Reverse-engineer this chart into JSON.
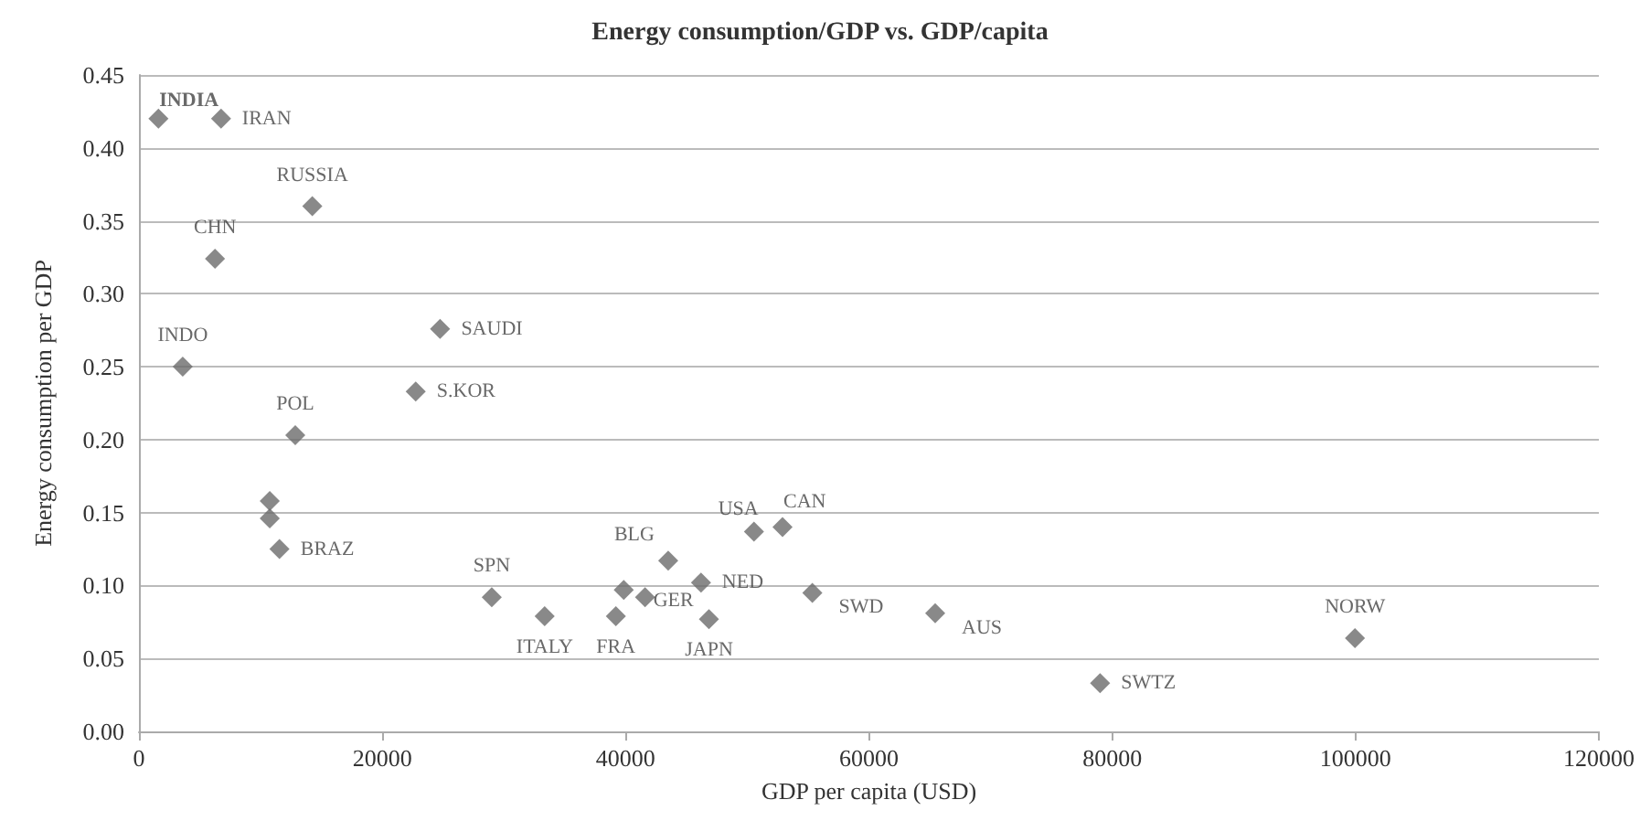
{
  "chart_data": {
    "type": "scatter",
    "title": "Energy consumption/GDP vs. GDP/capita",
    "xlabel": "GDP per capita (USD)",
    "ylabel": "Energy consumption per GDP",
    "xlim": [
      0,
      120000
    ],
    "xticks": [
      0,
      20000,
      40000,
      60000,
      80000,
      100000,
      120000
    ],
    "ylim": [
      0,
      0.45
    ],
    "yticks": [
      {
        "value": 0,
        "label": "0.00"
      },
      0.05,
      {
        "value": 0.1,
        "label": "0.10"
      },
      0.15,
      {
        "value": 0.2,
        "label": "0.20"
      },
      0.25,
      {
        "value": 0.3,
        "label": "0.30"
      },
      0.35,
      {
        "value": 0.4,
        "label": "0.40"
      },
      0.45
    ],
    "grid": "y",
    "legend": false,
    "marker": "diamond",
    "series": [
      {
        "name": "INDIA",
        "color": "#6b6b6b",
        "x": [
          1600
        ],
        "values": [
          0.42
        ]
      },
      {
        "name": "IRAN",
        "color": "#6b6b6b",
        "x": [
          6750
        ],
        "values": [
          0.42
        ]
      },
      {
        "name": "RUSSIA",
        "color": "#6b6b6b",
        "x": [
          14250
        ],
        "values": [
          0.36
        ]
      },
      {
        "name": "CHN",
        "color": "#6b6b6b",
        "x": [
          6250
        ],
        "values": [
          0.324
        ]
      },
      {
        "name": "INDO",
        "color": "#6b6b6b",
        "x": [
          3600
        ],
        "values": [
          0.25
        ]
      },
      {
        "name": "SAUDI",
        "color": "#6b6b6b",
        "x": [
          24750
        ],
        "values": [
          0.276
        ]
      },
      {
        "name": "S.KOR",
        "color": "#6b6b6b",
        "x": [
          22750
        ],
        "values": [
          0.233
        ]
      },
      {
        "name": "POL",
        "color": "#6b6b6b",
        "x": [
          12850
        ],
        "values": [
          0.203
        ]
      },
      {
        "name": "BRAZ",
        "color": "#6b6b6b",
        "x": [
          11550
        ],
        "values": [
          0.125
        ]
      },
      {
        "name": "SPN",
        "color": "#6b6b6b",
        "x": [
          29000
        ],
        "values": [
          0.092
        ]
      },
      {
        "name": "ITALY",
        "color": "#6b6b6b",
        "x": [
          33350
        ],
        "values": [
          0.079
        ]
      },
      {
        "name": "FRA",
        "color": "#6b6b6b",
        "x": [
          39200
        ],
        "values": [
          0.079
        ]
      },
      {
        "name": "GER",
        "color": "#6b6b6b",
        "x": [
          41600
        ],
        "values": [
          0.092
        ]
      },
      {
        "name": "BLG",
        "color": "#6b6b6b",
        "x": [
          43500
        ],
        "values": [
          0.117
        ]
      },
      {
        "name": "NED",
        "color": "#6b6b6b",
        "x": [
          46200
        ],
        "values": [
          0.102
        ]
      },
      {
        "name": "JAPN",
        "color": "#6b6b6b",
        "x": [
          46850
        ],
        "values": [
          0.077
        ]
      },
      {
        "name": "USA",
        "color": "#6b6b6b",
        "x": [
          50550
        ],
        "values": [
          0.137
        ]
      },
      {
        "name": "CAN",
        "color": "#6b6b6b",
        "x": [
          52900
        ],
        "values": [
          0.14
        ]
      },
      {
        "name": "SWD",
        "color": "#6b6b6b",
        "x": [
          55350
        ],
        "values": [
          0.095
        ]
      },
      {
        "name": "AUS",
        "color": "#6b6b6b",
        "x": [
          65450
        ],
        "values": [
          0.081
        ]
      },
      {
        "name": "SWTZ",
        "color": "#6b6b6b",
        "x": [
          79000
        ],
        "values": [
          0.033
        ]
      },
      {
        "name": "NORW",
        "color": "#6b6b6b",
        "x": [
          99950
        ],
        "values": [
          0.064
        ]
      },
      {
        "color": "#6b6b6b",
        "x": [
          10750,
          10750,
          39850
        ],
        "values": [
          0.158,
          0.146,
          0.097
        ]
      }
    ]
  }
}
